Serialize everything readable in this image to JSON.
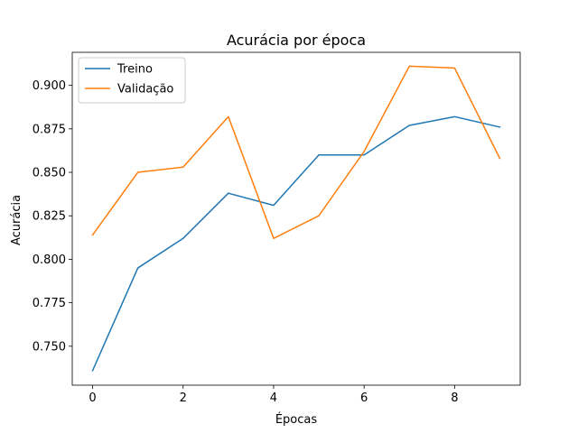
{
  "chart_data": {
    "type": "line",
    "title": "Acurácia por época",
    "xlabel": "Épocas",
    "ylabel": "Acurácia",
    "x": [
      0,
      1,
      2,
      3,
      4,
      5,
      6,
      7,
      8,
      9
    ],
    "xticks": [
      0,
      2,
      4,
      6,
      8
    ],
    "yticks": [
      0.75,
      0.775,
      0.8,
      0.825,
      0.85,
      0.875,
      0.9
    ],
    "xlim": [
      -0.45,
      9.45
    ],
    "ylim": [
      0.7276,
      0.919
    ],
    "legend_position": "upper-left",
    "grid": false,
    "series": [
      {
        "name": "Treino",
        "color": "#1f77b4",
        "values": [
          0.736,
          0.795,
          0.812,
          0.838,
          0.831,
          0.86,
          0.86,
          0.877,
          0.882,
          0.876
        ]
      },
      {
        "name": "Validação",
        "color": "#ff7f0e",
        "values": [
          0.814,
          0.85,
          0.853,
          0.882,
          0.812,
          0.825,
          0.862,
          0.911,
          0.91,
          0.858
        ]
      }
    ]
  }
}
